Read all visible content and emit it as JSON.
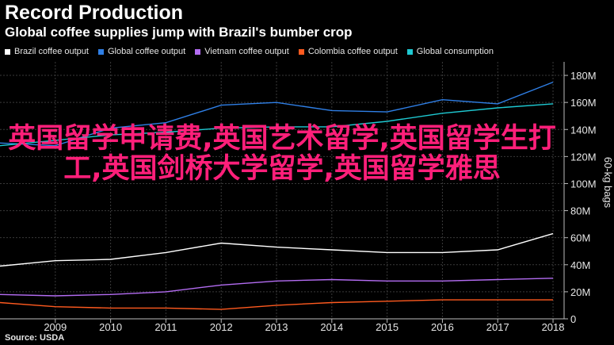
{
  "header": {
    "title": "Record Production",
    "subtitle": "Global coffee supplies jump with Brazil's bumber crop"
  },
  "overlay": {
    "text": "英国留学申请费,英国艺术留学,英国留学生打工,英国剑桥大学留学,英国留学雅思"
  },
  "source": "Source: USDA",
  "chart_data": {
    "type": "line",
    "x": [
      2008,
      2009,
      2010,
      2011,
      2012,
      2013,
      2014,
      2015,
      2016,
      2017,
      2018
    ],
    "x_tick_labels": [
      "2009",
      "2010",
      "2011",
      "2012",
      "2013",
      "2014",
      "2015",
      "2016",
      "2017",
      "2018"
    ],
    "y_tick_labels": [
      "0",
      "20M",
      "40M",
      "60M",
      "80M",
      "100M",
      "120M",
      "140M",
      "160M",
      "180M"
    ],
    "ylabel": "60-kg bags",
    "xlim": [
      2008,
      2018.2
    ],
    "ylim": [
      0,
      190
    ],
    "grid": true,
    "legend_position": "top-left",
    "series": [
      {
        "name": "Brazil coffee output",
        "color": "#ffffff",
        "values": [
          39,
          43,
          44,
          49,
          56,
          53,
          51,
          49,
          49,
          51,
          63
        ]
      },
      {
        "name": "Global coffee output",
        "color": "#2f7fe6",
        "values": [
          130,
          128,
          141,
          145,
          158,
          160,
          154,
          153,
          162,
          159,
          175
        ]
      },
      {
        "name": "Vietnam coffee output",
        "color": "#b36cf2",
        "values": [
          18,
          17,
          18,
          20,
          25,
          28,
          29,
          28,
          28,
          29,
          30
        ]
      },
      {
        "name": "Colombia coffee output",
        "color": "#ff5a1f",
        "values": [
          12,
          9,
          8,
          8,
          7,
          10,
          12,
          13,
          14,
          14,
          14
        ]
      },
      {
        "name": "Global consumption",
        "color": "#1ec9d2",
        "values": [
          128,
          132,
          136,
          138,
          141,
          142,
          142,
          146,
          152,
          156,
          159
        ]
      }
    ]
  }
}
